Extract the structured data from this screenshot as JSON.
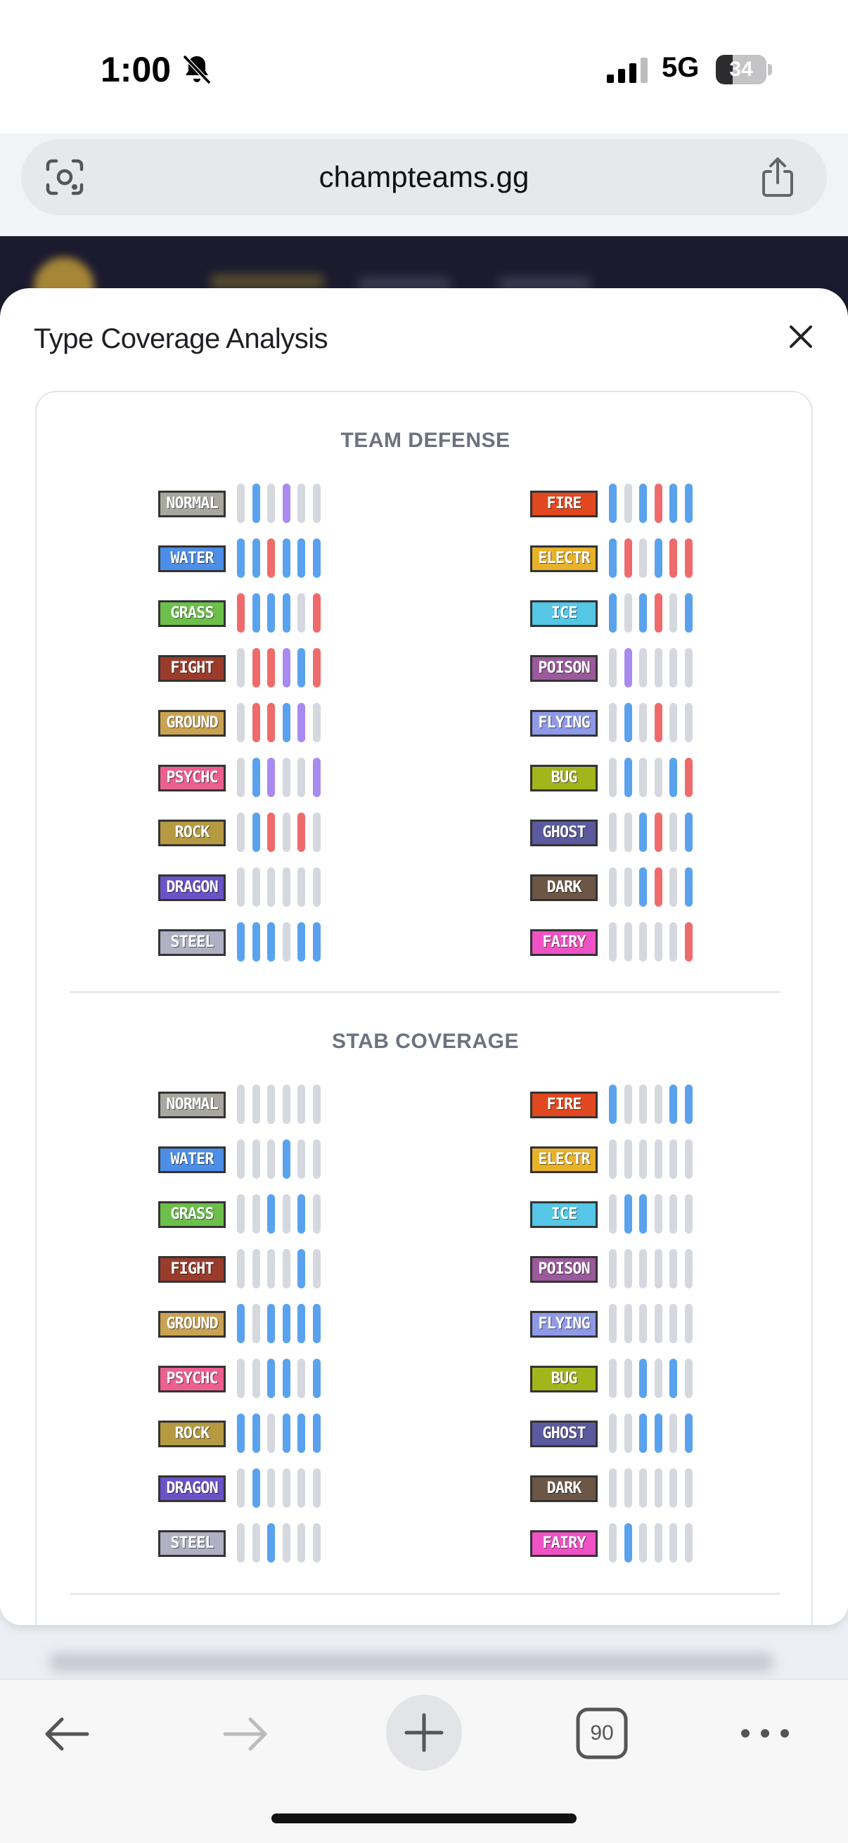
{
  "status_bar": {
    "time": "1:00",
    "network": "5G",
    "battery": "34",
    "battery_level": 0.34
  },
  "url_bar": {
    "url": "champteams.gg"
  },
  "sheet": {
    "title": "Type Coverage Analysis"
  },
  "colors": {
    "resist": "#5aa2ee",
    "weak": "#ef6b6b",
    "immune": "#a98af0",
    "neutral": "#d5d8de"
  },
  "types": {
    "normal": {
      "label": "NORMAL",
      "color": "#a8a8a0"
    },
    "water": {
      "label": "WATER",
      "color": "#4d8ee8"
    },
    "grass": {
      "label": "GRASS",
      "color": "#6cbf4a"
    },
    "fight": {
      "label": "FIGHT",
      "color": "#9a3c2c"
    },
    "ground": {
      "label": "GROUND",
      "color": "#c9a252"
    },
    "psychic": {
      "label": "PSYCHC",
      "color": "#ec5f8f"
    },
    "rock": {
      "label": "ROCK",
      "color": "#b59a42"
    },
    "dragon": {
      "label": "DRAGON",
      "color": "#6a52c8"
    },
    "steel": {
      "label": "STEEL",
      "color": "#b0b0c4"
    },
    "fire": {
      "label": "FIRE",
      "color": "#e2481f"
    },
    "electric": {
      "label": "ELECTR",
      "color": "#e8b12a"
    },
    "ice": {
      "label": "ICE",
      "color": "#55c6e6"
    },
    "poison": {
      "label": "POISON",
      "color": "#9a5a9c"
    },
    "flying": {
      "label": "FLYING",
      "color": "#8e9ae8"
    },
    "bug": {
      "label": "BUG",
      "color": "#a2b61c"
    },
    "ghost": {
      "label": "GHOST",
      "color": "#5c5a9e"
    },
    "dark": {
      "label": "DARK",
      "color": "#6c5646"
    },
    "fairy": {
      "label": "FAIRY",
      "color": "#ee52c4"
    }
  },
  "team_defense": {
    "title": "TEAM DEFENSE",
    "left": [
      {
        "type": "normal",
        "bars": [
          "n",
          "r",
          "n",
          "i",
          "n",
          "n"
        ]
      },
      {
        "type": "water",
        "bars": [
          "r",
          "r",
          "w",
          "r",
          "r",
          "r"
        ]
      },
      {
        "type": "grass",
        "bars": [
          "w",
          "r",
          "r",
          "r",
          "n",
          "w"
        ]
      },
      {
        "type": "fight",
        "bars": [
          "n",
          "w",
          "w",
          "i",
          "r",
          "w"
        ]
      },
      {
        "type": "ground",
        "bars": [
          "n",
          "w",
          "w",
          "r",
          "i",
          "n"
        ]
      },
      {
        "type": "psychic",
        "bars": [
          "n",
          "r",
          "i",
          "n",
          "n",
          "i"
        ]
      },
      {
        "type": "rock",
        "bars": [
          "n",
          "r",
          "w",
          "n",
          "w",
          "n"
        ]
      },
      {
        "type": "dragon",
        "bars": [
          "n",
          "n",
          "n",
          "n",
          "n",
          "n"
        ]
      },
      {
        "type": "steel",
        "bars": [
          "r",
          "r",
          "r",
          "n",
          "r",
          "r"
        ]
      }
    ],
    "right": [
      {
        "type": "fire",
        "bars": [
          "r",
          "n",
          "r",
          "w",
          "r",
          "r"
        ]
      },
      {
        "type": "electric",
        "bars": [
          "r",
          "w",
          "n",
          "r",
          "w",
          "w"
        ]
      },
      {
        "type": "ice",
        "bars": [
          "r",
          "n",
          "r",
          "w",
          "n",
          "r"
        ]
      },
      {
        "type": "poison",
        "bars": [
          "n",
          "i",
          "n",
          "n",
          "n",
          "n"
        ]
      },
      {
        "type": "flying",
        "bars": [
          "n",
          "r",
          "n",
          "w",
          "n",
          "n"
        ]
      },
      {
        "type": "bug",
        "bars": [
          "n",
          "r",
          "n",
          "n",
          "r",
          "w"
        ]
      },
      {
        "type": "ghost",
        "bars": [
          "n",
          "n",
          "r",
          "w",
          "n",
          "r"
        ]
      },
      {
        "type": "dark",
        "bars": [
          "n",
          "n",
          "r",
          "w",
          "n",
          "r"
        ]
      },
      {
        "type": "fairy",
        "bars": [
          "n",
          "n",
          "n",
          "n",
          "n",
          "w"
        ]
      }
    ]
  },
  "stab_coverage": {
    "title": "STAB COVERAGE",
    "left": [
      {
        "type": "normal",
        "bars": [
          "n",
          "n",
          "n",
          "n",
          "n",
          "n"
        ]
      },
      {
        "type": "water",
        "bars": [
          "n",
          "n",
          "n",
          "r",
          "n",
          "n"
        ]
      },
      {
        "type": "grass",
        "bars": [
          "n",
          "n",
          "r",
          "n",
          "r",
          "n"
        ]
      },
      {
        "type": "fight",
        "bars": [
          "n",
          "n",
          "n",
          "n",
          "r",
          "n"
        ]
      },
      {
        "type": "ground",
        "bars": [
          "r",
          "n",
          "r",
          "r",
          "r",
          "r"
        ]
      },
      {
        "type": "psychic",
        "bars": [
          "n",
          "n",
          "r",
          "r",
          "n",
          "r"
        ]
      },
      {
        "type": "rock",
        "bars": [
          "r",
          "r",
          "n",
          "r",
          "r",
          "r"
        ]
      },
      {
        "type": "dragon",
        "bars": [
          "n",
          "r",
          "n",
          "n",
          "n",
          "n"
        ]
      },
      {
        "type": "steel",
        "bars": [
          "n",
          "n",
          "r",
          "n",
          "n",
          "n"
        ]
      }
    ],
    "right": [
      {
        "type": "fire",
        "bars": [
          "r",
          "n",
          "n",
          "n",
          "r",
          "r"
        ]
      },
      {
        "type": "electric",
        "bars": [
          "n",
          "n",
          "n",
          "n",
          "n",
          "n"
        ]
      },
      {
        "type": "ice",
        "bars": [
          "n",
          "r",
          "r",
          "n",
          "n",
          "n"
        ]
      },
      {
        "type": "poison",
        "bars": [
          "n",
          "n",
          "n",
          "n",
          "n",
          "n"
        ]
      },
      {
        "type": "flying",
        "bars": [
          "n",
          "n",
          "n",
          "n",
          "n",
          "n"
        ]
      },
      {
        "type": "bug",
        "bars": [
          "n",
          "n",
          "r",
          "n",
          "r",
          "n"
        ]
      },
      {
        "type": "ghost",
        "bars": [
          "n",
          "n",
          "r",
          "r",
          "n",
          "r"
        ]
      },
      {
        "type": "dark",
        "bars": [
          "n",
          "n",
          "n",
          "n",
          "n",
          "n"
        ]
      },
      {
        "type": "fairy",
        "bars": [
          "n",
          "r",
          "n",
          "n",
          "n",
          "n"
        ]
      }
    ]
  },
  "toolbar": {
    "tab_count": "90"
  },
  "icons": {
    "bell": "bell-slash-icon",
    "signal": "cellular-signal-icon",
    "lens": "camera-lens-icon",
    "share": "share-icon",
    "close": "close-icon",
    "back": "arrow-left-icon",
    "forward": "arrow-right-icon",
    "new_tab": "plus-icon",
    "tabs": "tabs-icon",
    "more": "ellipsis-icon"
  }
}
